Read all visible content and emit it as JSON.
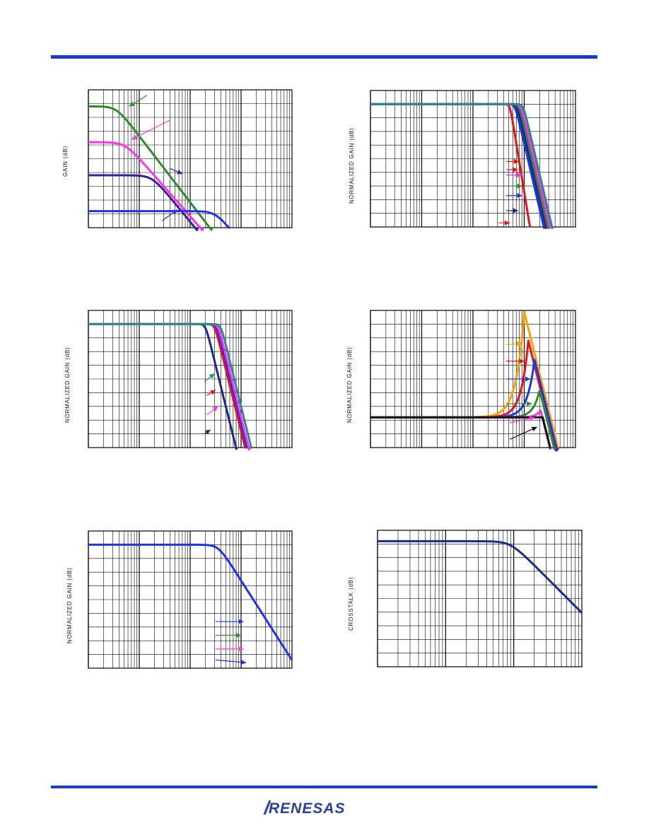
{
  "colors": {
    "rule": "#1a3ccc",
    "logo": "#2a3e9e"
  },
  "logo_text": "RENESAS",
  "chart_data": [
    {
      "id": "c1",
      "type": "line",
      "ylabel": "GAIN (dB)",
      "xdecades": 4,
      "ylim": [
        0,
        100
      ],
      "series": [
        {
          "name": "green",
          "color": "#2e8b2e",
          "flat": 88,
          "cutoff": 0.55,
          "slope": 48
        },
        {
          "name": "magenta",
          "color": "#ff33ee",
          "flat": 62,
          "cutoff": 0.72,
          "slope": 42
        },
        {
          "name": "purple",
          "color": "#3a1f9a",
          "flat": 38,
          "cutoff": 1.25,
          "slope": 45
        },
        {
          "name": "blue",
          "color": "#1d35e8",
          "flat": 12,
          "cutoff": 2.5,
          "slope": 45,
          "stopY": 0
        }
      ],
      "arrows": [
        {
          "color": "#2e8b2e",
          "from": [
            1.15,
            96
          ],
          "to": [
            0.8,
            88
          ]
        },
        {
          "color": "#ff33ee",
          "from": [
            1.6,
            78
          ],
          "to": [
            0.85,
            64
          ]
        },
        {
          "color": "#3a1f9a",
          "from": [
            1.6,
            43
          ],
          "to": [
            1.85,
            39
          ]
        },
        {
          "color": "#1d35e8",
          "from": [
            1.45,
            5
          ],
          "to": [
            1.75,
            13
          ]
        }
      ]
    },
    {
      "id": "c2",
      "type": "line",
      "ylabel": "NORMALIZED GAIN (dB)",
      "xdecades": 4,
      "ylim": [
        0,
        100
      ],
      "series": [
        {
          "name": "red",
          "color": "#ee1111",
          "flat": 90,
          "cutoff": 2.72,
          "slope": 230
        },
        {
          "name": "blue",
          "color": "#1d35e8",
          "flat": 90,
          "cutoff": 2.82,
          "slope": 160
        },
        {
          "name": "navy",
          "color": "#1a2a8a",
          "flat": 90,
          "cutoff": 2.86,
          "slope": 160
        },
        {
          "name": "green",
          "color": "#2e8b2e",
          "flat": 90,
          "cutoff": 2.9,
          "slope": 160
        },
        {
          "name": "magenta",
          "color": "#ff33ee",
          "flat": 90,
          "cutoff": 2.94,
          "slope": 160
        },
        {
          "name": "teal",
          "color": "#2a8a8a",
          "flat": 90,
          "cutoff": 2.98,
          "slope": 160
        }
      ],
      "arrows": [
        {
          "color": "#ee1111",
          "from": [
            2.65,
            48
          ],
          "to": [
            2.9,
            48
          ]
        },
        {
          "color": "#ee1111",
          "from": [
            2.65,
            42
          ],
          "to": [
            2.88,
            42
          ]
        },
        {
          "color": "#ff33ee",
          "from": [
            2.65,
            38
          ],
          "to": [
            2.95,
            38
          ]
        },
        {
          "color": "#2e8b2e",
          "from": [
            2.65,
            30
          ],
          "to": [
            2.96,
            30
          ]
        },
        {
          "color": "#1d35e8",
          "from": [
            2.65,
            23
          ],
          "to": [
            2.96,
            23
          ]
        },
        {
          "color": "#1a2a8a",
          "from": [
            2.65,
            12
          ],
          "to": [
            2.88,
            12
          ]
        },
        {
          "color": "#ee1111",
          "from": [
            2.5,
            3
          ],
          "to": [
            2.72,
            3
          ]
        }
      ]
    },
    {
      "id": "c3",
      "type": "line",
      "ylabel": "NORMALIZED GAIN (dB)",
      "xdecades": 4,
      "ylim": [
        0,
        100
      ],
      "series": [
        {
          "name": "navy",
          "color": "#1a2a8a",
          "flat": 90,
          "cutoff": 2.3,
          "slope": 150
        },
        {
          "name": "red",
          "color": "#ee1111",
          "flat": 90,
          "cutoff": 2.48,
          "slope": 150
        },
        {
          "name": "blue",
          "color": "#1d35e8",
          "flat": 90,
          "cutoff": 2.52,
          "slope": 150
        },
        {
          "name": "magenta",
          "color": "#ff33ee",
          "flat": 90,
          "cutoff": 2.55,
          "slope": 150
        },
        {
          "name": "teal",
          "color": "#2a8a8a",
          "flat": 90,
          "cutoff": 2.6,
          "slope": 150
        }
      ],
      "arrows": [
        {
          "color": "#2a8a8a",
          "from": [
            2.28,
            48
          ],
          "to": [
            2.48,
            54
          ]
        },
        {
          "color": "#ee1111",
          "from": [
            2.33,
            38
          ],
          "to": [
            2.5,
            42
          ]
        },
        {
          "color": "#ff33ee",
          "from": [
            2.33,
            24
          ],
          "to": [
            2.55,
            30
          ]
        },
        {
          "color": "#1a2a8a",
          "from": [
            2.28,
            10
          ],
          "to": [
            2.4,
            13
          ]
        }
      ]
    },
    {
      "id": "c4",
      "type": "line",
      "ylabel": "NORMALIZED GAIN (dB)",
      "xdecades": 4,
      "ylim": [
        0,
        100
      ],
      "series": [
        {
          "name": "orange",
          "color": "#ffa000",
          "flat": 22,
          "peakX": 3.0,
          "peakY": 99,
          "width": 0.45,
          "after": 150
        },
        {
          "name": "red",
          "color": "#ee1111",
          "flat": 22,
          "peakX": 3.08,
          "peakY": 78,
          "width": 0.4,
          "after": 150
        },
        {
          "name": "blue",
          "color": "#1d35e8",
          "flat": 22,
          "peakX": 3.2,
          "peakY": 64,
          "width": 0.4,
          "after": 150
        },
        {
          "name": "green",
          "color": "#2e8b2e",
          "flat": 22,
          "peakX": 3.3,
          "peakY": 42,
          "width": 0.35,
          "after": 150
        },
        {
          "name": "magenta",
          "color": "#ff33ee",
          "flat": 22,
          "peakX": 3.32,
          "peakY": 27,
          "width": 0.28,
          "after": 150
        },
        {
          "name": "black",
          "color": "#111111",
          "flat": 22,
          "peakX": 3.36,
          "peakY": 22,
          "width": 0.2,
          "after": 150
        }
      ],
      "arrows": [
        {
          "color": "#ffa000",
          "from": [
            2.65,
            75
          ],
          "to": [
            2.95,
            76
          ]
        },
        {
          "color": "#ee1111",
          "from": [
            2.65,
            63
          ],
          "to": [
            3.0,
            63
          ]
        },
        {
          "color": "#1d35e8",
          "from": [
            2.65,
            50
          ],
          "to": [
            3.12,
            50
          ]
        },
        {
          "color": "#2e8b2e",
          "from": [
            2.65,
            32
          ],
          "to": [
            3.15,
            32
          ]
        },
        {
          "color": "#ff33ee",
          "from": [
            2.72,
            18
          ],
          "to": [
            3.2,
            22
          ]
        },
        {
          "color": "#111111",
          "from": [
            2.72,
            6
          ],
          "to": [
            3.25,
            15
          ]
        }
      ]
    },
    {
      "id": "c5",
      "type": "line",
      "ylabel": "NORMALIZED GAIN (dB)",
      "xdecades": 4,
      "ylim": [
        0,
        100
      ],
      "series": [
        {
          "name": "blue",
          "color": "#1d35e8",
          "flat": 90,
          "cutoff": 2.55,
          "slope": 58,
          "stopY": 0
        }
      ],
      "arrows": [
        {
          "color": "#1d35e8",
          "from": [
            2.5,
            34
          ],
          "to": [
            3.05,
            34
          ]
        },
        {
          "color": "#2e8b2e",
          "from": [
            2.5,
            24
          ],
          "to": [
            3.0,
            24
          ]
        },
        {
          "color": "#ff33ee",
          "from": [
            2.5,
            14
          ],
          "to": [
            3.05,
            14
          ]
        },
        {
          "color": "#1d35e8",
          "from": [
            2.5,
            6
          ],
          "to": [
            3.1,
            4
          ]
        }
      ]
    },
    {
      "id": "c6",
      "type": "line",
      "ylabel": "CROSSTALK (dB)",
      "xdecades": 3,
      "ylim": [
        0,
        100
      ],
      "series": [
        {
          "name": "crosstalk",
          "color": "#1a2a8a",
          "flat": 92,
          "cutoff": 1.95,
          "slope": 50,
          "stopX": 3.0
        }
      ],
      "arrows": []
    }
  ]
}
